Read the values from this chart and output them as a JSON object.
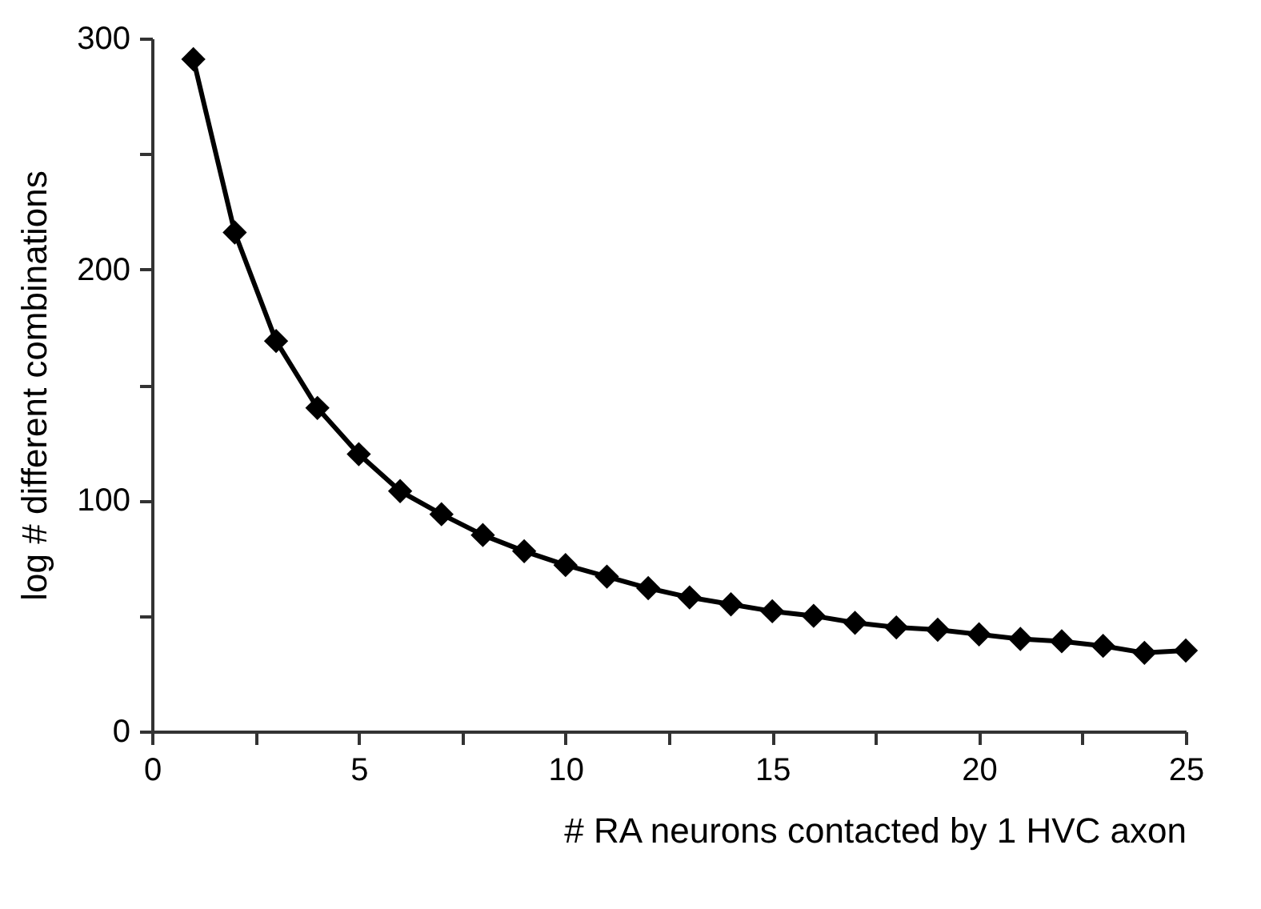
{
  "chart_data": {
    "type": "line",
    "xlabel": "# RA neurons contacted by 1 HVC axon",
    "ylabel": "log # different combinations",
    "x": [
      1,
      2,
      3,
      4,
      5,
      6,
      7,
      8,
      9,
      10,
      11,
      12,
      13,
      14,
      15,
      16,
      17,
      18,
      19,
      20,
      21,
      22,
      23,
      24,
      25
    ],
    "series": [
      {
        "color": "#000000",
        "values": [
          291,
          216,
          169,
          140,
          120,
          104,
          94,
          85,
          78,
          72,
          67,
          62,
          58,
          55,
          52,
          50,
          47,
          45,
          44,
          42,
          40,
          39,
          37,
          34,
          35
        ]
      }
    ],
    "xlim": [
      0,
      25
    ],
    "xticks": [
      0,
      5,
      10,
      15,
      20,
      25
    ],
    "ylim": [
      0,
      300
    ],
    "yticks": [
      0,
      100,
      200,
      300
    ],
    "grid": false,
    "marker": "diamond",
    "line_style": "solid"
  }
}
